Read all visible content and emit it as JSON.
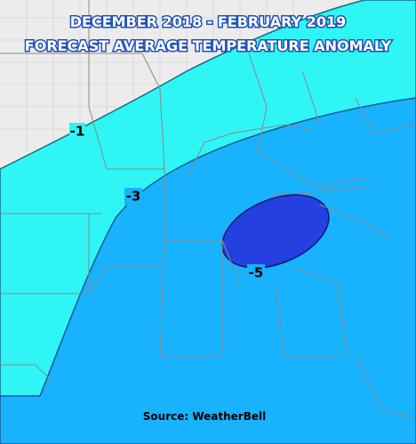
{
  "title": {
    "line1": "DECEMBER 2018 - FEBRUARY 2019",
    "line2": "FORECAST AVERAGE TEMPERATURE ANOMALY"
  },
  "contours": [
    {
      "label": "-1"
    },
    {
      "label": "-3"
    },
    {
      "label": "-5"
    }
  ],
  "source": "Source:  WeatherBell"
}
